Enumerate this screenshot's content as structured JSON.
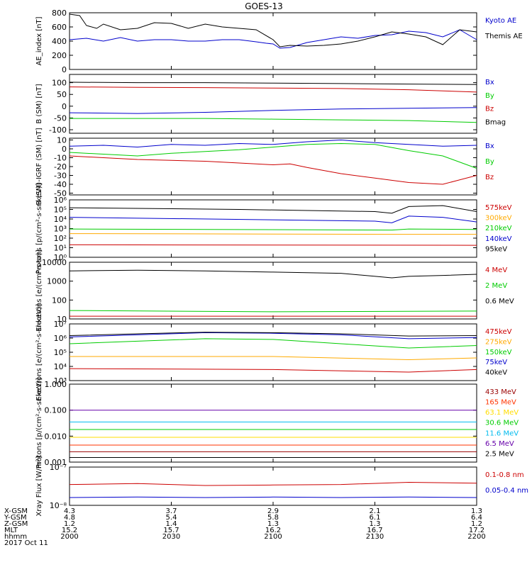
{
  "title": "GOES-13",
  "chart_data": [
    {
      "type": "line",
      "ylabel": "AE_index [nT]",
      "yscale": "linear",
      "ylim": [
        0,
        800
      ],
      "yticks": [
        {
          "v": 0,
          "label": "0"
        },
        {
          "v": 200,
          "label": "200"
        },
        {
          "v": 400,
          "label": "400"
        },
        {
          "v": 600,
          "label": "600"
        },
        {
          "v": 800,
          "label": "800"
        }
      ],
      "series": [
        {
          "name": "Kyoto AE",
          "color": "#0000cc",
          "x": [
            0,
            5,
            10,
            15,
            20,
            25,
            30,
            35,
            40,
            45,
            50,
            55,
            58,
            60,
            62,
            65,
            70,
            75,
            80,
            85,
            90,
            95,
            100,
            105,
            110,
            115,
            120
          ],
          "y": [
            420,
            440,
            400,
            450,
            400,
            420,
            420,
            400,
            400,
            420,
            420,
            390,
            370,
            360,
            300,
            310,
            380,
            420,
            460,
            440,
            480,
            490,
            540,
            520,
            460,
            560,
            420
          ]
        },
        {
          "name": "Themis AE",
          "color": "#000000",
          "x": [
            0,
            3,
            5,
            8,
            10,
            15,
            20,
            25,
            30,
            35,
            40,
            45,
            50,
            55,
            60,
            62,
            65,
            70,
            75,
            80,
            85,
            90,
            95,
            100,
            105,
            110,
            115,
            120
          ],
          "y": [
            780,
            760,
            620,
            580,
            640,
            560,
            580,
            660,
            650,
            580,
            640,
            600,
            580,
            560,
            420,
            320,
            340,
            330,
            340,
            360,
            400,
            460,
            530,
            500,
            460,
            350,
            560,
            530
          ]
        }
      ]
    },
    {
      "type": "line",
      "ylabel": "B (SM) [nT]",
      "yscale": "linear",
      "ylim": [
        -115,
        135
      ],
      "yticks": [
        {
          "v": -100,
          "label": "-100"
        },
        {
          "v": -50,
          "label": "-50"
        },
        {
          "v": 0,
          "label": "0"
        },
        {
          "v": 50,
          "label": "50"
        },
        {
          "v": 100,
          "label": "100"
        }
      ],
      "series": [
        {
          "name": "Bx",
          "color": "#0000cc",
          "x": [
            0,
            20,
            40,
            60,
            80,
            100,
            120
          ],
          "y": [
            -28,
            -31,
            -26,
            -18,
            -12,
            -9,
            -6
          ]
        },
        {
          "name": "By",
          "color": "#00cc00",
          "x": [
            0,
            20,
            40,
            60,
            80,
            100,
            120
          ],
          "y": [
            -52,
            -52,
            -52,
            -55,
            -58,
            -61,
            -69
          ]
        },
        {
          "name": "Bz",
          "color": "#cc0000",
          "x": [
            0,
            20,
            40,
            60,
            80,
            100,
            120
          ],
          "y": [
            82,
            80,
            79,
            77,
            75,
            70,
            60
          ]
        },
        {
          "name": "Bmag",
          "color": "#000000",
          "x": [
            0,
            20,
            40,
            60,
            80,
            100,
            120
          ],
          "y": [
            102,
            100,
            100,
            98,
            96,
            94,
            92
          ]
        }
      ]
    },
    {
      "type": "line",
      "ylabel": "B (SM)-IGRF (SM) [nT]",
      "yscale": "linear",
      "ylim": [
        -52,
        12
      ],
      "yticks": [
        {
          "v": -50,
          "label": "-50"
        },
        {
          "v": -40,
          "label": "-40"
        },
        {
          "v": -30,
          "label": "-30"
        },
        {
          "v": -20,
          "label": "-20"
        },
        {
          "v": -10,
          "label": "-10"
        },
        {
          "v": 0,
          "label": "0"
        },
        {
          "v": 10,
          "label": "10"
        }
      ],
      "series": [
        {
          "name": "Bx",
          "color": "#0000cc",
          "x": [
            0,
            10,
            20,
            30,
            40,
            50,
            60,
            70,
            80,
            90,
            100,
            110,
            120
          ],
          "y": [
            3,
            4,
            2,
            5,
            4,
            6,
            5,
            8,
            10,
            7,
            5,
            3,
            4
          ]
        },
        {
          "name": "By",
          "color": "#00cc00",
          "x": [
            0,
            10,
            20,
            30,
            40,
            50,
            60,
            70,
            80,
            90,
            100,
            110,
            120
          ],
          "y": [
            -4,
            -6,
            -8,
            -5,
            -3,
            -1,
            2,
            5,
            6,
            5,
            -2,
            -8,
            -22
          ]
        },
        {
          "name": "Bz",
          "color": "#cc0000",
          "x": [
            0,
            10,
            20,
            30,
            40,
            50,
            60,
            65,
            70,
            80,
            90,
            100,
            110,
            120
          ],
          "y": [
            -8,
            -10,
            -12,
            -13,
            -14,
            -16,
            -18,
            -17,
            -21,
            -28,
            -33,
            -38,
            -40,
            -30
          ]
        }
      ]
    },
    {
      "type": "line",
      "ylabel": "Protons [p/(cm²-s-sr-keV)]",
      "yscale": "log",
      "ylim": [
        1,
        1000000
      ],
      "yticks": [
        {
          "v": 1,
          "label": "10⁰"
        },
        {
          "v": 10,
          "label": "10¹"
        },
        {
          "v": 100,
          "label": "10²"
        },
        {
          "v": 1000,
          "label": "10³"
        },
        {
          "v": 10000,
          "label": "10⁴"
        },
        {
          "v": 100000,
          "label": "10⁵"
        },
        {
          "v": 1000000,
          "label": "10⁶"
        }
      ],
      "series": [
        {
          "name": "575keV",
          "color": "#cc0000",
          "x": [
            0,
            120
          ],
          "y": [
            20,
            18
          ]
        },
        {
          "name": "300keV",
          "color": "#ffaa00",
          "x": [
            0,
            100,
            120
          ],
          "y": [
            300,
            250,
            250
          ]
        },
        {
          "name": "210keV",
          "color": "#00cc00",
          "x": [
            0,
            95,
            100,
            120
          ],
          "y": [
            900,
            700,
            900,
            800
          ]
        },
        {
          "name": "140keV",
          "color": "#0000cc",
          "x": [
            0,
            90,
            95,
            100,
            110,
            120
          ],
          "y": [
            15000,
            6000,
            4000,
            20000,
            15000,
            5000
          ]
        },
        {
          "name": "95keV",
          "color": "#000000",
          "x": [
            0,
            50,
            90,
            95,
            100,
            110,
            120
          ],
          "y": [
            150000,
            100000,
            60000,
            40000,
            200000,
            250000,
            60000
          ]
        }
      ]
    },
    {
      "type": "line",
      "ylabel": "Electrons [e/(cm²-s-sr)]",
      "yscale": "log",
      "ylim": [
        10,
        10000
      ],
      "yticks": [
        {
          "v": 10,
          "label": "10"
        },
        {
          "v": 100,
          "label": "100"
        },
        {
          "v": 1000,
          "label": "1000"
        },
        {
          "v": 10000,
          "label": "10000"
        }
      ],
      "series": [
        {
          "name": "4 MeV",
          "color": "#cc0000",
          "x": [
            0,
            120
          ],
          "y": [
            14,
            14
          ]
        },
        {
          "name": "2 MeV",
          "color": "#00cc00",
          "x": [
            0,
            60,
            120
          ],
          "y": [
            28,
            24,
            26
          ]
        },
        {
          "name": "0.6 MeV",
          "color": "#000000",
          "x": [
            0,
            20,
            40,
            60,
            80,
            95,
            100,
            110,
            120
          ],
          "y": [
            3500,
            3800,
            3500,
            3000,
            2600,
            1500,
            1800,
            2000,
            2300
          ]
        }
      ]
    },
    {
      "type": "line",
      "ylabel": "Electrons [e/(cm²-s-sr-keV)]",
      "yscale": "log",
      "ylim": [
        1000,
        10000000
      ],
      "yticks": [
        {
          "v": 1000,
          "label": "10³"
        },
        {
          "v": 10000,
          "label": "10⁴"
        },
        {
          "v": 100000,
          "label": "10⁵"
        },
        {
          "v": 1000000,
          "label": "10⁶"
        },
        {
          "v": 10000000,
          "label": "10⁷"
        }
      ],
      "series": [
        {
          "name": "475keV",
          "color": "#cc0000",
          "x": [
            0,
            60,
            100,
            120
          ],
          "y": [
            7000,
            6000,
            4000,
            6000
          ]
        },
        {
          "name": "275keV",
          "color": "#ffaa00",
          "x": [
            0,
            60,
            100,
            120
          ],
          "y": [
            50000,
            50000,
            30000,
            40000
          ]
        },
        {
          "name": "150keV",
          "color": "#00cc00",
          "x": [
            0,
            20,
            40,
            60,
            80,
            100,
            120
          ],
          "y": [
            400000,
            600000,
            900000,
            800000,
            400000,
            200000,
            300000
          ]
        },
        {
          "name": "75keV",
          "color": "#0000cc",
          "x": [
            0,
            20,
            40,
            60,
            80,
            100,
            120
          ],
          "y": [
            1200000,
            1700000,
            2400000,
            2200000,
            1700000,
            900000,
            1100000
          ]
        },
        {
          "name": "40keV",
          "color": "#000000",
          "x": [
            0,
            20,
            40,
            60,
            80,
            100,
            120
          ],
          "y": [
            1500000,
            2000000,
            2600000,
            2400000,
            2000000,
            1400000,
            1500000
          ]
        }
      ]
    },
    {
      "type": "line",
      "ylabel": "Protons [p/(cm²-s-sr-keV)]",
      "yscale": "log",
      "ylim": [
        0.001,
        1
      ],
      "yticks": [
        {
          "v": 0.001,
          "label": "0.001"
        },
        {
          "v": 0.01,
          "label": "0.010"
        },
        {
          "v": 0.1,
          "label": "0.100"
        },
        {
          "v": 1,
          "label": "1.000"
        }
      ],
      "series": [
        {
          "name": "433 MeV",
          "color": "#990000",
          "x": [
            0,
            60,
            120
          ],
          "y": [
            0.0025,
            0.0025,
            0.0025
          ]
        },
        {
          "name": "165 MeV",
          "color": "#ff3300",
          "x": [
            0,
            60,
            120
          ],
          "y": [
            0.0045,
            0.0045,
            0.0045
          ]
        },
        {
          "name": "63.1 MeV",
          "color": "#ffdd00",
          "x": [
            0,
            60,
            120
          ],
          "y": [
            0.009,
            0.009,
            0.009
          ]
        },
        {
          "name": "30.6 MeV",
          "color": "#00cc00",
          "x": [
            0,
            60,
            120
          ],
          "y": [
            0.018,
            0.018,
            0.018
          ]
        },
        {
          "name": "11.6 MeV",
          "color": "#00bbee",
          "x": [
            0,
            60,
            120
          ],
          "y": [
            0.035,
            0.035,
            0.035
          ]
        },
        {
          "name": "6.5 MeV",
          "color": "#6600aa",
          "x": [
            0,
            60,
            120
          ],
          "y": [
            0.1,
            0.1,
            0.1
          ]
        },
        {
          "name": "2.5 MeV",
          "color": "#000000",
          "x": [
            0,
            60,
            120
          ],
          "y": [
            0.0015,
            0.0015,
            0.0015
          ]
        }
      ]
    },
    {
      "type": "line",
      "ylabel": "Xray Flux [W/m²]",
      "yscale": "log",
      "ylim": [
        1e-08,
        1e-07
      ],
      "yticks": [
        {
          "v": 1e-08,
          "label": "10⁻⁸"
        },
        {
          "v": 1e-07,
          "label": "10⁻⁷"
        }
      ],
      "series": [
        {
          "name": "0.1-0.8 nm",
          "color": "#cc0000",
          "x": [
            0,
            20,
            40,
            60,
            80,
            100,
            120
          ],
          "y": [
            3.5e-08,
            3.7e-08,
            3.3e-08,
            3.4e-08,
            3.5e-08,
            4e-08,
            3.8e-08
          ]
        },
        {
          "name": "0.05-0.4 nm",
          "color": "#0000cc",
          "x": [
            0,
            20,
            40,
            60,
            80,
            100,
            120
          ],
          "y": [
            1.6e-08,
            1.65e-08,
            1.6e-08,
            1.65e-08,
            1.6e-08,
            1.65e-08,
            1.6e-08
          ]
        }
      ]
    }
  ],
  "footer": {
    "xticks": [
      0,
      30,
      60,
      90,
      120
    ],
    "rows": [
      {
        "label": "X-GSM",
        "values": [
          "4.3",
          "3.7",
          "2.9",
          "2.1",
          "1.3"
        ]
      },
      {
        "label": "Y-GSM",
        "values": [
          "4.8",
          "5.4",
          "5.8",
          "6.1",
          "6.4"
        ]
      },
      {
        "label": "Z-GSM",
        "values": [
          "1.2",
          "1.4",
          "1.3",
          "1.3",
          "1.2"
        ]
      },
      {
        "label": "MLT",
        "values": [
          "15.2",
          "15.7",
          "16.2",
          "16.7",
          "17.2"
        ]
      },
      {
        "label": "hhmm",
        "values": [
          "2000",
          "2030",
          "2100",
          "2130",
          "2200"
        ]
      }
    ],
    "date": "2017 Oct 11"
  }
}
